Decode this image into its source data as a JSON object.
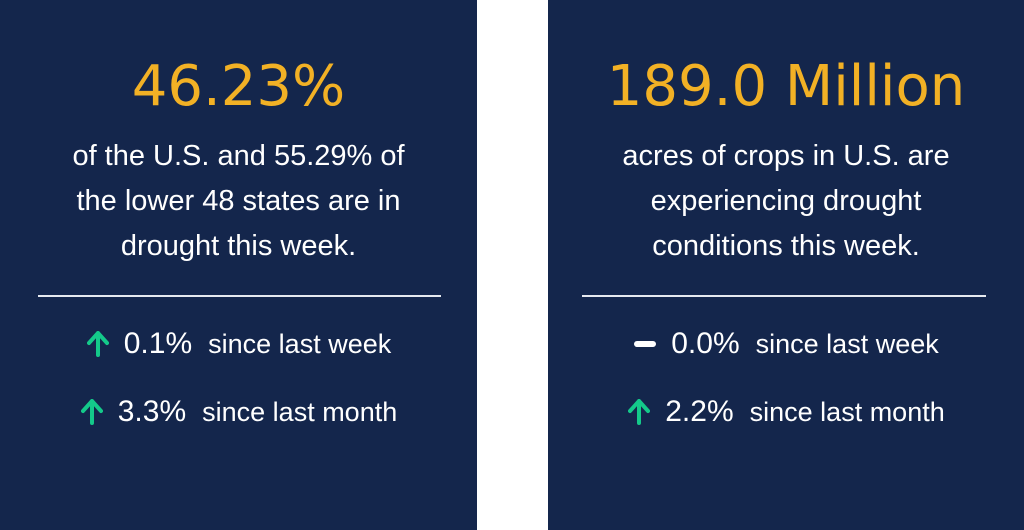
{
  "colors": {
    "panel_background": "#14264c",
    "headline": "#f2b125",
    "up_arrow": "#14c98a",
    "flat_dash": "#ffffff",
    "text": "#ffffff"
  },
  "cards": [
    {
      "headline": "46.23%",
      "description_lines": [
        "of the U.S. and 55.29% of",
        "the lower 48 states are in",
        "drought this week."
      ],
      "changes": [
        {
          "trend": "up",
          "icon": "up-arrow-icon",
          "value": "0.1%",
          "label": "since last week"
        },
        {
          "trend": "up",
          "icon": "up-arrow-icon",
          "value": "3.3%",
          "label": "since last month"
        }
      ]
    },
    {
      "headline": "189.0 Million",
      "description_lines": [
        "acres of crops in U.S. are",
        "experiencing drought",
        "conditions this week."
      ],
      "changes": [
        {
          "trend": "flat",
          "icon": "dash-icon",
          "value": "0.0%",
          "label": "since last week"
        },
        {
          "trend": "up",
          "icon": "up-arrow-icon",
          "value": "2.2%",
          "label": "since last month"
        }
      ]
    }
  ]
}
